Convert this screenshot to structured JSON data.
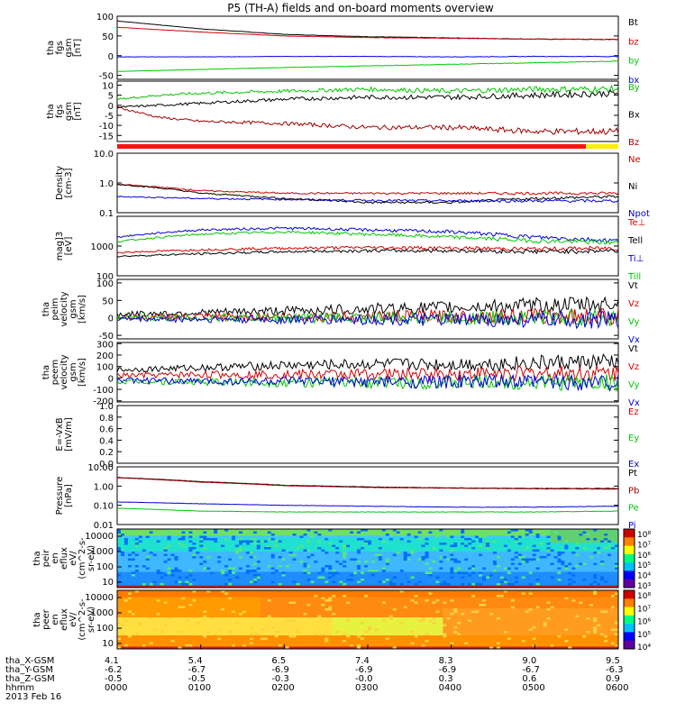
{
  "title": "P5 (TH-A) fields and on-board moments overview",
  "colors": {
    "black": "#000000",
    "red": "#d40000",
    "green": "#00c800",
    "blue": "#0000d8",
    "darkred": "#a00000",
    "yellow": "#ffee00",
    "grey": "#444444"
  },
  "chart_data": [
    {
      "type": "line",
      "ylabel": [
        "tha",
        "fgs",
        "gsm",
        "[nT]"
      ],
      "yticks": [
        "100",
        "50",
        "0",
        "-50"
      ],
      "ylim": [
        -60,
        100
      ],
      "legend": [
        {
          "name": "Bt",
          "color": "black"
        },
        {
          "name": "bz",
          "color": "red"
        },
        {
          "name": "by",
          "color": "green"
        },
        {
          "name": "bx",
          "color": "blue"
        }
      ],
      "series": [
        {
          "name": "Bt",
          "color": "black",
          "x": [
            0,
            1,
            2,
            3,
            4,
            5,
            6
          ],
          "y": [
            88,
            68,
            54,
            48,
            45,
            42,
            41
          ]
        },
        {
          "name": "bz",
          "color": "red",
          "x": [
            0,
            1,
            2,
            3,
            4,
            5,
            6
          ],
          "y": [
            72,
            60,
            50,
            46,
            44,
            42,
            41
          ]
        },
        {
          "name": "by",
          "color": "green",
          "x": [
            0,
            1,
            2,
            3,
            4,
            5,
            6
          ],
          "y": [
            -40,
            -35,
            -30,
            -26,
            -22,
            -18,
            -14
          ]
        },
        {
          "name": "bx",
          "color": "blue",
          "x": [
            0,
            1,
            2,
            3,
            4,
            5,
            6
          ],
          "y": [
            -3,
            -3,
            -2,
            -2,
            -3,
            -2,
            -2
          ]
        }
      ]
    },
    {
      "type": "line",
      "ylabel": [
        "tha",
        "fgs",
        "gsm",
        "[nT]"
      ],
      "yticks": [
        "10",
        "5",
        "0",
        "-5",
        "-10",
        "-15"
      ],
      "ylim": [
        -18,
        12
      ],
      "legend": [
        {
          "name": "By",
          "color": "green"
        },
        {
          "name": "Bx",
          "color": "black"
        },
        {
          "name": "Bz",
          "color": "darkred"
        }
      ],
      "series": [
        {
          "name": "By",
          "color": "green",
          "x": [
            0,
            0.5,
            1,
            2,
            3,
            4,
            5,
            6
          ],
          "y": [
            3,
            5,
            6,
            7,
            8,
            7,
            8,
            8
          ]
        },
        {
          "name": "Bx",
          "color": "black",
          "x": [
            0,
            0.5,
            1,
            2,
            3,
            4,
            5,
            6
          ],
          "y": [
            -1,
            0,
            1,
            3,
            4,
            4,
            5,
            6
          ]
        },
        {
          "name": "Bz",
          "color": "darkred",
          "x": [
            0,
            0.5,
            1,
            2,
            3,
            4,
            5,
            6
          ],
          "y": [
            -1,
            -6,
            -8,
            -9,
            -11,
            -11,
            -13,
            -13
          ]
        }
      ]
    },
    {
      "type": "line",
      "ylabel": [
        "Density",
        "[cm-3]"
      ],
      "scale": "log",
      "yticks": [
        "10.0",
        "1.0",
        "0.1"
      ],
      "ylim": [
        0.1,
        10
      ],
      "legend": [
        {
          "name": "Ne",
          "color": "red"
        },
        {
          "name": "Ni",
          "color": "black"
        },
        {
          "name": "Npot",
          "color": "blue"
        }
      ],
      "series": [
        {
          "name": "Ne",
          "color": "red",
          "x": [
            0,
            1,
            2,
            3,
            4,
            5,
            6
          ],
          "y": [
            0.9,
            0.55,
            0.45,
            0.45,
            0.45,
            0.45,
            0.45
          ]
        },
        {
          "name": "Ni",
          "color": "black",
          "x": [
            0,
            1,
            2,
            3,
            4,
            5,
            6
          ],
          "y": [
            0.9,
            0.45,
            0.3,
            0.22,
            0.22,
            0.3,
            0.35
          ]
        },
        {
          "name": "Npot",
          "color": "blue",
          "x": [
            0,
            1,
            2,
            3,
            4,
            5,
            6
          ],
          "y": [
            0.35,
            0.3,
            0.28,
            0.26,
            0.25,
            0.25,
            0.25
          ]
        }
      ]
    },
    {
      "type": "line",
      "ylabel": [
        "mag]3",
        "[eV]"
      ],
      "scale": "log",
      "yticks": [
        "1000",
        "100"
      ],
      "ylim": [
        100,
        10000
      ],
      "legend": [
        {
          "name": "Te⊥",
          "color": "red"
        },
        {
          "name": "Tell",
          "color": "black"
        },
        {
          "name": "Ti⊥",
          "color": "blue"
        },
        {
          "name": "Till",
          "color": "green"
        }
      ],
      "series": [
        {
          "name": "Ti⊥",
          "color": "blue",
          "x": [
            0,
            1,
            2,
            3,
            4,
            5,
            6
          ],
          "y": [
            2000,
            3500,
            4000,
            3500,
            3000,
            2000,
            1500
          ]
        },
        {
          "name": "Till",
          "color": "green",
          "x": [
            0,
            1,
            2,
            3,
            4,
            5,
            6
          ],
          "y": [
            1400,
            2500,
            3000,
            2500,
            2000,
            1500,
            1300
          ]
        },
        {
          "name": "Te⊥",
          "color": "red",
          "x": [
            0,
            1,
            2,
            3,
            4,
            5,
            6
          ],
          "y": [
            600,
            750,
            850,
            900,
            850,
            800,
            850
          ]
        },
        {
          "name": "Tell",
          "color": "black",
          "x": [
            0,
            1,
            2,
            3,
            4,
            5,
            6
          ],
          "y": [
            450,
            550,
            650,
            700,
            700,
            650,
            700
          ]
        }
      ]
    },
    {
      "type": "line",
      "ylabel": [
        "tha",
        "peim",
        "velocity",
        "gsm",
        "[km/s]"
      ],
      "yticks": [
        "100",
        "50",
        "0",
        "-50"
      ],
      "ylim": [
        -60,
        110
      ],
      "legend": [
        {
          "name": "Vt",
          "color": "black"
        },
        {
          "name": "Vz",
          "color": "red"
        },
        {
          "name": "Vy",
          "color": "green"
        },
        {
          "name": "Vx",
          "color": "blue"
        }
      ],
      "series": [
        {
          "name": "Vt",
          "color": "black",
          "x": [
            0,
            1,
            2,
            3,
            4,
            5,
            6
          ],
          "y": [
            10,
            15,
            20,
            25,
            30,
            35,
            40
          ]
        },
        {
          "name": "Vz",
          "color": "red",
          "x": [
            0,
            1,
            2,
            3,
            4,
            5,
            6
          ],
          "y": [
            2,
            3,
            3,
            4,
            4,
            5,
            5
          ]
        },
        {
          "name": "Vy",
          "color": "green",
          "x": [
            0,
            1,
            2,
            3,
            4,
            5,
            6
          ],
          "y": [
            0,
            0,
            0,
            0,
            0,
            0,
            0
          ]
        },
        {
          "name": "Vx",
          "color": "blue",
          "x": [
            0,
            1,
            2,
            3,
            4,
            5,
            6
          ],
          "y": [
            -3,
            -4,
            -5,
            -5,
            -6,
            -6,
            -6
          ]
        }
      ]
    },
    {
      "type": "line",
      "ylabel": [
        "tha",
        "peem",
        "velocity",
        "gsm",
        "[km/s]"
      ],
      "yticks": [
        "300",
        "200",
        "100",
        "0",
        "-100",
        "-200"
      ],
      "ylim": [
        -210,
        310
      ],
      "legend": [
        {
          "name": "Vt",
          "color": "black"
        },
        {
          "name": "Vz",
          "color": "red"
        },
        {
          "name": "Vy",
          "color": "green"
        },
        {
          "name": "Vx",
          "color": "blue"
        }
      ],
      "series": [
        {
          "name": "Vt",
          "color": "black",
          "x": [
            0,
            1,
            2,
            3,
            4,
            5,
            6
          ],
          "y": [
            70,
            90,
            110,
            120,
            120,
            130,
            140
          ]
        },
        {
          "name": "Vz",
          "color": "red",
          "x": [
            0,
            1,
            2,
            3,
            4,
            5,
            6
          ],
          "y": [
            20,
            30,
            30,
            35,
            35,
            40,
            40
          ]
        },
        {
          "name": "Vy",
          "color": "green",
          "x": [
            0,
            1,
            2,
            3,
            4,
            5,
            6
          ],
          "y": [
            -30,
            -35,
            -40,
            -40,
            -40,
            -40,
            -40
          ]
        },
        {
          "name": "Vx",
          "color": "blue",
          "x": [
            0,
            1,
            2,
            3,
            4,
            5,
            6
          ],
          "y": [
            -20,
            -30,
            -30,
            -35,
            -35,
            -35,
            -35
          ]
        }
      ]
    },
    {
      "type": "line",
      "ylabel": [
        "E=-VxB",
        "[mV/m]"
      ],
      "yticks": [
        "1.0",
        "0.8",
        "0.6",
        "0.4",
        "0.2",
        "0.0"
      ],
      "ylim": [
        0,
        1
      ],
      "legend": [
        {
          "name": "Ez",
          "color": "red"
        },
        {
          "name": "Ey",
          "color": "green"
        },
        {
          "name": "Ex",
          "color": "blue"
        }
      ],
      "series": []
    },
    {
      "type": "line",
      "ylabel": [
        "Pressure",
        "[nPa]"
      ],
      "scale": "log",
      "yticks": [
        "10.00",
        "1.00",
        "0.10",
        "0.01"
      ],
      "ylim": [
        0.01,
        10
      ],
      "legend": [
        {
          "name": "Pt",
          "color": "black"
        },
        {
          "name": "Pb",
          "color": "darkred"
        },
        {
          "name": "Pe",
          "color": "green"
        },
        {
          "name": "Pi",
          "color": "blue"
        }
      ],
      "series": [
        {
          "name": "Pt",
          "color": "black",
          "x": [
            0,
            1,
            2,
            3,
            4,
            5,
            6
          ],
          "y": [
            2.8,
            1.7,
            1.1,
            0.9,
            0.8,
            0.75,
            0.75
          ]
        },
        {
          "name": "Pb",
          "color": "darkred",
          "x": [
            0,
            1,
            2,
            3,
            4,
            5,
            6
          ],
          "y": [
            2.7,
            1.6,
            1.05,
            0.85,
            0.78,
            0.72,
            0.7
          ]
        },
        {
          "name": "Pi",
          "color": "blue",
          "x": [
            0,
            1,
            2,
            3,
            4,
            5,
            6
          ],
          "y": [
            0.15,
            0.12,
            0.1,
            0.09,
            0.08,
            0.08,
            0.09
          ]
        },
        {
          "name": "Pe",
          "color": "green",
          "x": [
            0,
            1,
            2,
            3,
            4,
            5,
            6
          ],
          "y": [
            0.07,
            0.05,
            0.045,
            0.045,
            0.045,
            0.045,
            0.05
          ]
        }
      ]
    },
    {
      "type": "heatmap",
      "ylabel": [
        "tha",
        "peir",
        "en",
        "eflux",
        "eV/",
        "(cm^2-s-",
        "sr-eV)"
      ],
      "yticks": [
        "10000",
        "1000",
        "100",
        "10"
      ],
      "scale": "log",
      "colorbar": {
        "labels": [
          "10⁸",
          "10⁷",
          "10⁶",
          "10⁵",
          "10⁴",
          "10³"
        ]
      }
    },
    {
      "type": "heatmap",
      "ylabel": [
        "tha",
        "peer",
        "en",
        "eflux",
        "eV/",
        "(cm^2-s-",
        "sr-eV)"
      ],
      "yticks": [
        "10000",
        "1000",
        "100",
        "10"
      ],
      "scale": "log",
      "colorbar": {
        "labels": [
          "10⁸",
          "10⁷",
          "10⁶",
          "10⁵",
          "10⁴"
        ]
      }
    }
  ],
  "ephemeris": {
    "labels": [
      "tha_X-GSM",
      "tha_Y-GSM",
      "tha_Z-GSM",
      "hhmm",
      "2013 Feb 16"
    ],
    "columns": [
      {
        "x": "4.1",
        "y": "-6.2",
        "z": "-0.5",
        "t": "0000"
      },
      {
        "x": "5.4",
        "y": "-6.7",
        "z": "-0.5",
        "t": "0100"
      },
      {
        "x": "6.5",
        "y": "-6.9",
        "z": "-0.3",
        "t": "0200"
      },
      {
        "x": "7.4",
        "y": "-6.9",
        "z": "-0.0",
        "t": "0300"
      },
      {
        "x": "8.3",
        "y": "-6.9",
        "z": "0.3",
        "t": "0400"
      },
      {
        "x": "9.0",
        "y": "-6.7",
        "z": "0.6",
        "t": "0500"
      },
      {
        "x": "9.5",
        "y": "-6.3",
        "z": "0.9",
        "t": "0600"
      }
    ]
  }
}
